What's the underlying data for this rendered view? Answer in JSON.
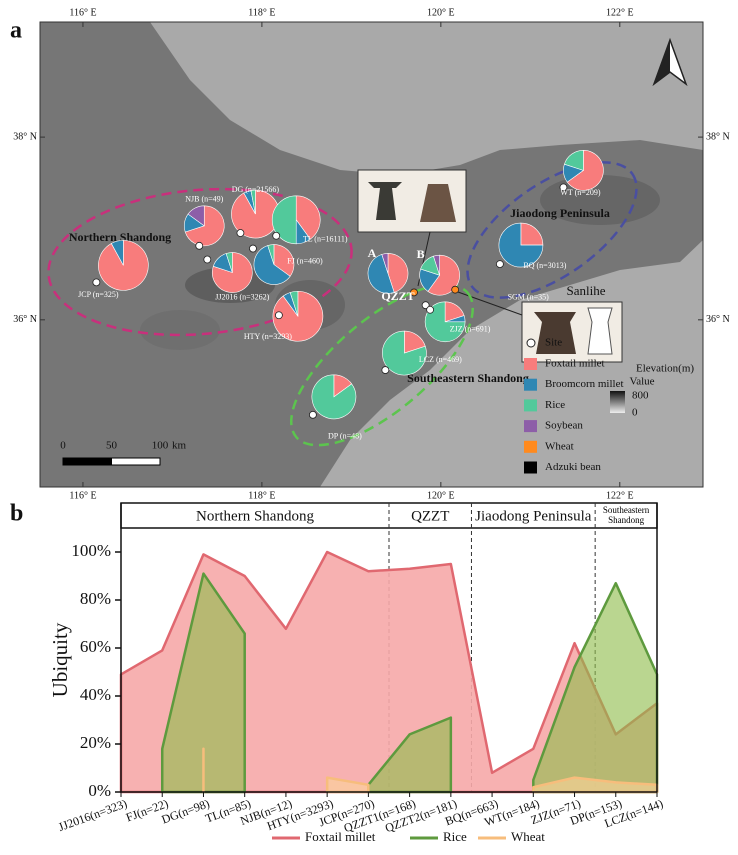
{
  "panel_labels": [
    "a",
    "b"
  ],
  "chart_data": [
    {
      "type": "map-pie",
      "xlim": [
        115.52,
        122.93
      ],
      "ylim": [
        34.17,
        39.26
      ],
      "xticks": [
        {
          "value": 116,
          "label": "116° E"
        },
        {
          "value": 118,
          "label": "118° E"
        },
        {
          "value": 120,
          "label": "120° E"
        },
        {
          "value": 122,
          "label": "122° E"
        }
      ],
      "yticks": [
        {
          "value": 36,
          "label": "36° N"
        },
        {
          "value": 38,
          "label": "38° N"
        }
      ],
      "series": [
        {
          "name": "Foxtail millet",
          "color": "#f87c7c"
        },
        {
          "name": "Broomcorn millet",
          "color": "#2f87b3"
        },
        {
          "name": "Rice",
          "color": "#52c99b"
        },
        {
          "name": "Soybean",
          "color": "#8d5ea8"
        },
        {
          "name": "Wheat",
          "color": "#ff8a1e"
        },
        {
          "name": "Adzuki bean",
          "color": "#000000"
        }
      ],
      "site_legend": "Site",
      "regions": [
        {
          "name": "Northern Shandong",
          "color": "#c8307c"
        },
        {
          "name": "Jiaodong Peninsula",
          "color": "#4a4fa0"
        },
        {
          "name": "Southeastern Shandong",
          "color": "#5cc44e"
        }
      ],
      "sites": [
        {
          "name": "JCP (n=325)",
          "lon": 116.15,
          "lat": 36.41,
          "values": [
            92,
            8,
            0,
            0,
            0,
            0
          ]
        },
        {
          "name": "NJB (n=49)",
          "lon": 117.3,
          "lat": 36.81,
          "values": [
            70,
            15,
            0,
            15,
            0,
            0
          ]
        },
        {
          "name": "DG (n=21566)",
          "lon": 117.76,
          "lat": 36.95,
          "values": [
            92,
            5,
            3,
            0,
            0,
            0
          ]
        },
        {
          "name": "TL (n=16111)",
          "lon": 118.16,
          "lat": 36.92,
          "values": [
            40,
            10,
            50,
            0,
            0,
            0
          ]
        },
        {
          "name": "FJ (n=460)",
          "lon": 117.9,
          "lat": 36.78,
          "values": [
            35,
            60,
            5,
            0,
            0,
            0
          ]
        },
        {
          "name": "JJ2016 (n=3262)",
          "lon": 117.39,
          "lat": 36.66,
          "values": [
            80,
            15,
            5,
            0,
            0,
            0
          ]
        },
        {
          "name": "HTY (n=3293)",
          "lon": 118.19,
          "lat": 36.05,
          "values": [
            90,
            5,
            5,
            0,
            0,
            0
          ]
        },
        {
          "name": "A",
          "lon": 119.7,
          "lat": 36.3,
          "values": [
            45,
            50,
            0,
            5,
            0,
            0
          ],
          "dot_color": "#ff8a1e"
        },
        {
          "name": "B",
          "lon": 119.83,
          "lat": 36.16,
          "values": [
            60,
            20,
            15,
            5,
            0,
            0
          ]
        },
        {
          "name": "ZJZ (n=691)",
          "lon": 119.88,
          "lat": 36.11,
          "values": [
            20,
            5,
            75,
            0,
            0,
            0
          ]
        },
        {
          "name": "LCZ (n=469)",
          "lon": 119.38,
          "lat": 35.45,
          "values": [
            20,
            0,
            80,
            0,
            0,
            0
          ]
        },
        {
          "name": "DP (n=48)",
          "lon": 118.57,
          "lat": 34.96,
          "values": [
            15,
            0,
            85,
            0,
            0,
            0
          ]
        },
        {
          "name": "BQ (n=3013)",
          "lon": 120.66,
          "lat": 36.61,
          "values": [
            25,
            75,
            0,
            0,
            0,
            0
          ]
        },
        {
          "name": "WT (n=209)",
          "lon": 121.37,
          "lat": 37.45,
          "values": [
            65,
            15,
            20,
            0,
            0,
            0
          ]
        },
        {
          "name": "SGM (n=35)",
          "lon": 120.16,
          "lat": 36.33,
          "dot_color": "#ff8a1e"
        }
      ],
      "annotations": [
        "QZZT",
        "Sanlihe"
      ],
      "scale_bar": {
        "ticks": [
          0,
          50,
          100
        ],
        "unit": "km"
      },
      "elevation_legend": {
        "title": "Elevation(m)",
        "label": "Value",
        "ticks": [
          800,
          0
        ]
      }
    },
    {
      "type": "area",
      "y_label": "Ubiquity",
      "categories": [
        "JJ2016(n=323)",
        "FJ(n=22)",
        "DG(n=98)",
        "TL(n=85)",
        "NJB(n=12)",
        "HTY(n=3293)",
        "JCP(n=270)",
        "QZZT1(n=168)",
        "QZZT2(n=181)",
        "BQ(n=663)",
        "WT(n=184)",
        "ZJZ(n=71)",
        "DP(n=153)",
        "LCZ(n=144)"
      ],
      "groups": [
        "Northern Shandong",
        "QZZT",
        "Jiaodong Peninsula",
        "Southeastern Shandong"
      ],
      "ylim": [
        0,
        110
      ],
      "yticks": [
        {
          "value": 0,
          "label": "0%"
        },
        {
          "value": 20,
          "label": "20%"
        },
        {
          "value": 40,
          "label": "40%"
        },
        {
          "value": 60,
          "label": "60%"
        },
        {
          "value": 80,
          "label": "80%"
        },
        {
          "value": 100,
          "label": "100%"
        }
      ],
      "series": [
        {
          "name": "Foxtail millet",
          "color": "#e06870",
          "fill": "#f6a9a9",
          "values": [
            49,
            59,
            99,
            90,
            68,
            100,
            92,
            93,
            95,
            8,
            18,
            62,
            24,
            37
          ]
        },
        {
          "name": "Rice",
          "color": "#5e9a3e",
          "fill": "#8fbd4c",
          "values": [
            null,
            18,
            91,
            66,
            null,
            null,
            3,
            24,
            31,
            null,
            5,
            52,
            87,
            49
          ]
        },
        {
          "name": "Wheat",
          "color": "#f7bd7c",
          "fill": "#fbd39a",
          "values": [
            null,
            null,
            18,
            null,
            null,
            6,
            3,
            null,
            null,
            null,
            2,
            6,
            4,
            3
          ]
        }
      ]
    }
  ]
}
